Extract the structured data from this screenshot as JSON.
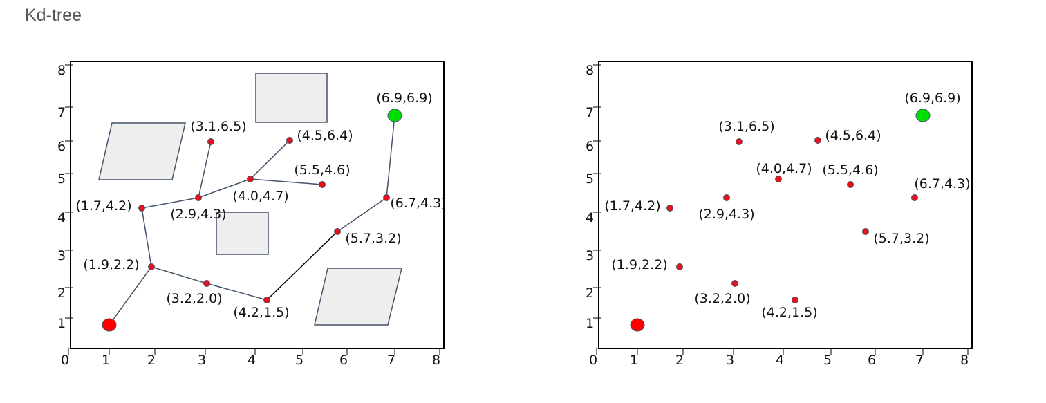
{
  "title": "Kd-tree",
  "colors": {
    "point_fill": "#e8101a",
    "point_stroke": "#44546a",
    "start_fill": "#ff0000",
    "goal_fill": "#00e000",
    "obstacle_fill": "#eeeeee",
    "obstacle_stroke": "#44546a",
    "edge": "#44546a",
    "text": "#111111"
  },
  "axis": {
    "x_ticks": [
      "0",
      "1",
      "2",
      "3",
      "4",
      "5",
      "6",
      "7",
      "8"
    ],
    "y_ticks": [
      "8",
      "7",
      "6",
      "5",
      "4",
      "3",
      "2",
      "1"
    ],
    "range": [
      0,
      8
    ]
  },
  "points": [
    {
      "label": "(3.1,6.5)"
    },
    {
      "label": "(4.5,6.4)"
    },
    {
      "label": "(5.5,4.6)"
    },
    {
      "label": "(4.0,4.7)"
    },
    {
      "label": "(1.7,4.2)"
    },
    {
      "label": "(2.9,4.3)"
    },
    {
      "label": "(6.7,4.3)"
    },
    {
      "label": "(5.7,3.2)"
    },
    {
      "label": "(1.9,2.2)"
    },
    {
      "label": "(3.2,2.0)"
    },
    {
      "label": "(4.2,1.5)"
    }
  ],
  "start": {
    "label": ""
  },
  "goal": {
    "label": "(6.9,6.9)"
  }
}
